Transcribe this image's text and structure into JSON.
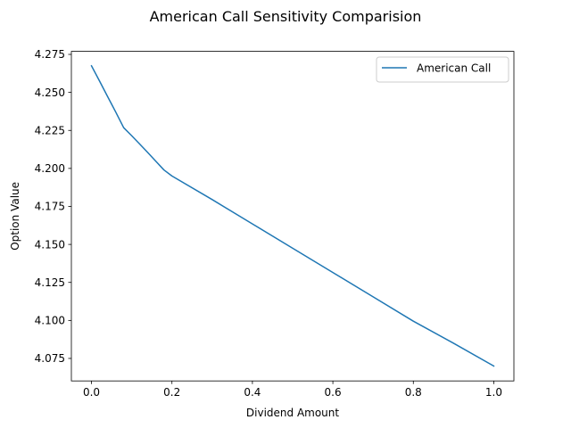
{
  "chart_data": {
    "type": "line",
    "title": "American Call Sensitivity Comparision",
    "xlabel": "Dividend Amount",
    "ylabel": "Option Value",
    "xlim": [
      -0.05,
      1.05
    ],
    "ylim": [
      4.0602,
      4.277
    ],
    "xticks": [
      0.0,
      0.2,
      0.4,
      0.6,
      0.8,
      1.0
    ],
    "xtick_labels": [
      "0.0",
      "0.2",
      "0.4",
      "0.6",
      "0.8",
      "1.0"
    ],
    "yticks": [
      4.075,
      4.1,
      4.125,
      4.15,
      4.175,
      4.2,
      4.225,
      4.25,
      4.275
    ],
    "ytick_labels": [
      "4.075",
      "4.100",
      "4.125",
      "4.150",
      "4.175",
      "4.200",
      "4.225",
      "4.250",
      "4.275"
    ],
    "grid": false,
    "legend_position": "top-right",
    "series": [
      {
        "name": "American Call",
        "color": "#1f77b4",
        "x": [
          0.0,
          0.02,
          0.04,
          0.06,
          0.08,
          0.1,
          0.12,
          0.14,
          0.16,
          0.18,
          0.2,
          0.3,
          0.4,
          0.5,
          0.6,
          0.7,
          0.8,
          0.9,
          1.0
        ],
        "y": [
          4.2675,
          4.2575,
          4.2473,
          4.2372,
          4.2268,
          4.2215,
          4.216,
          4.2104,
          4.2047,
          4.199,
          4.195,
          4.1795,
          4.1635,
          4.1475,
          4.1315,
          4.1155,
          4.0995,
          4.085,
          4.07
        ]
      }
    ]
  }
}
